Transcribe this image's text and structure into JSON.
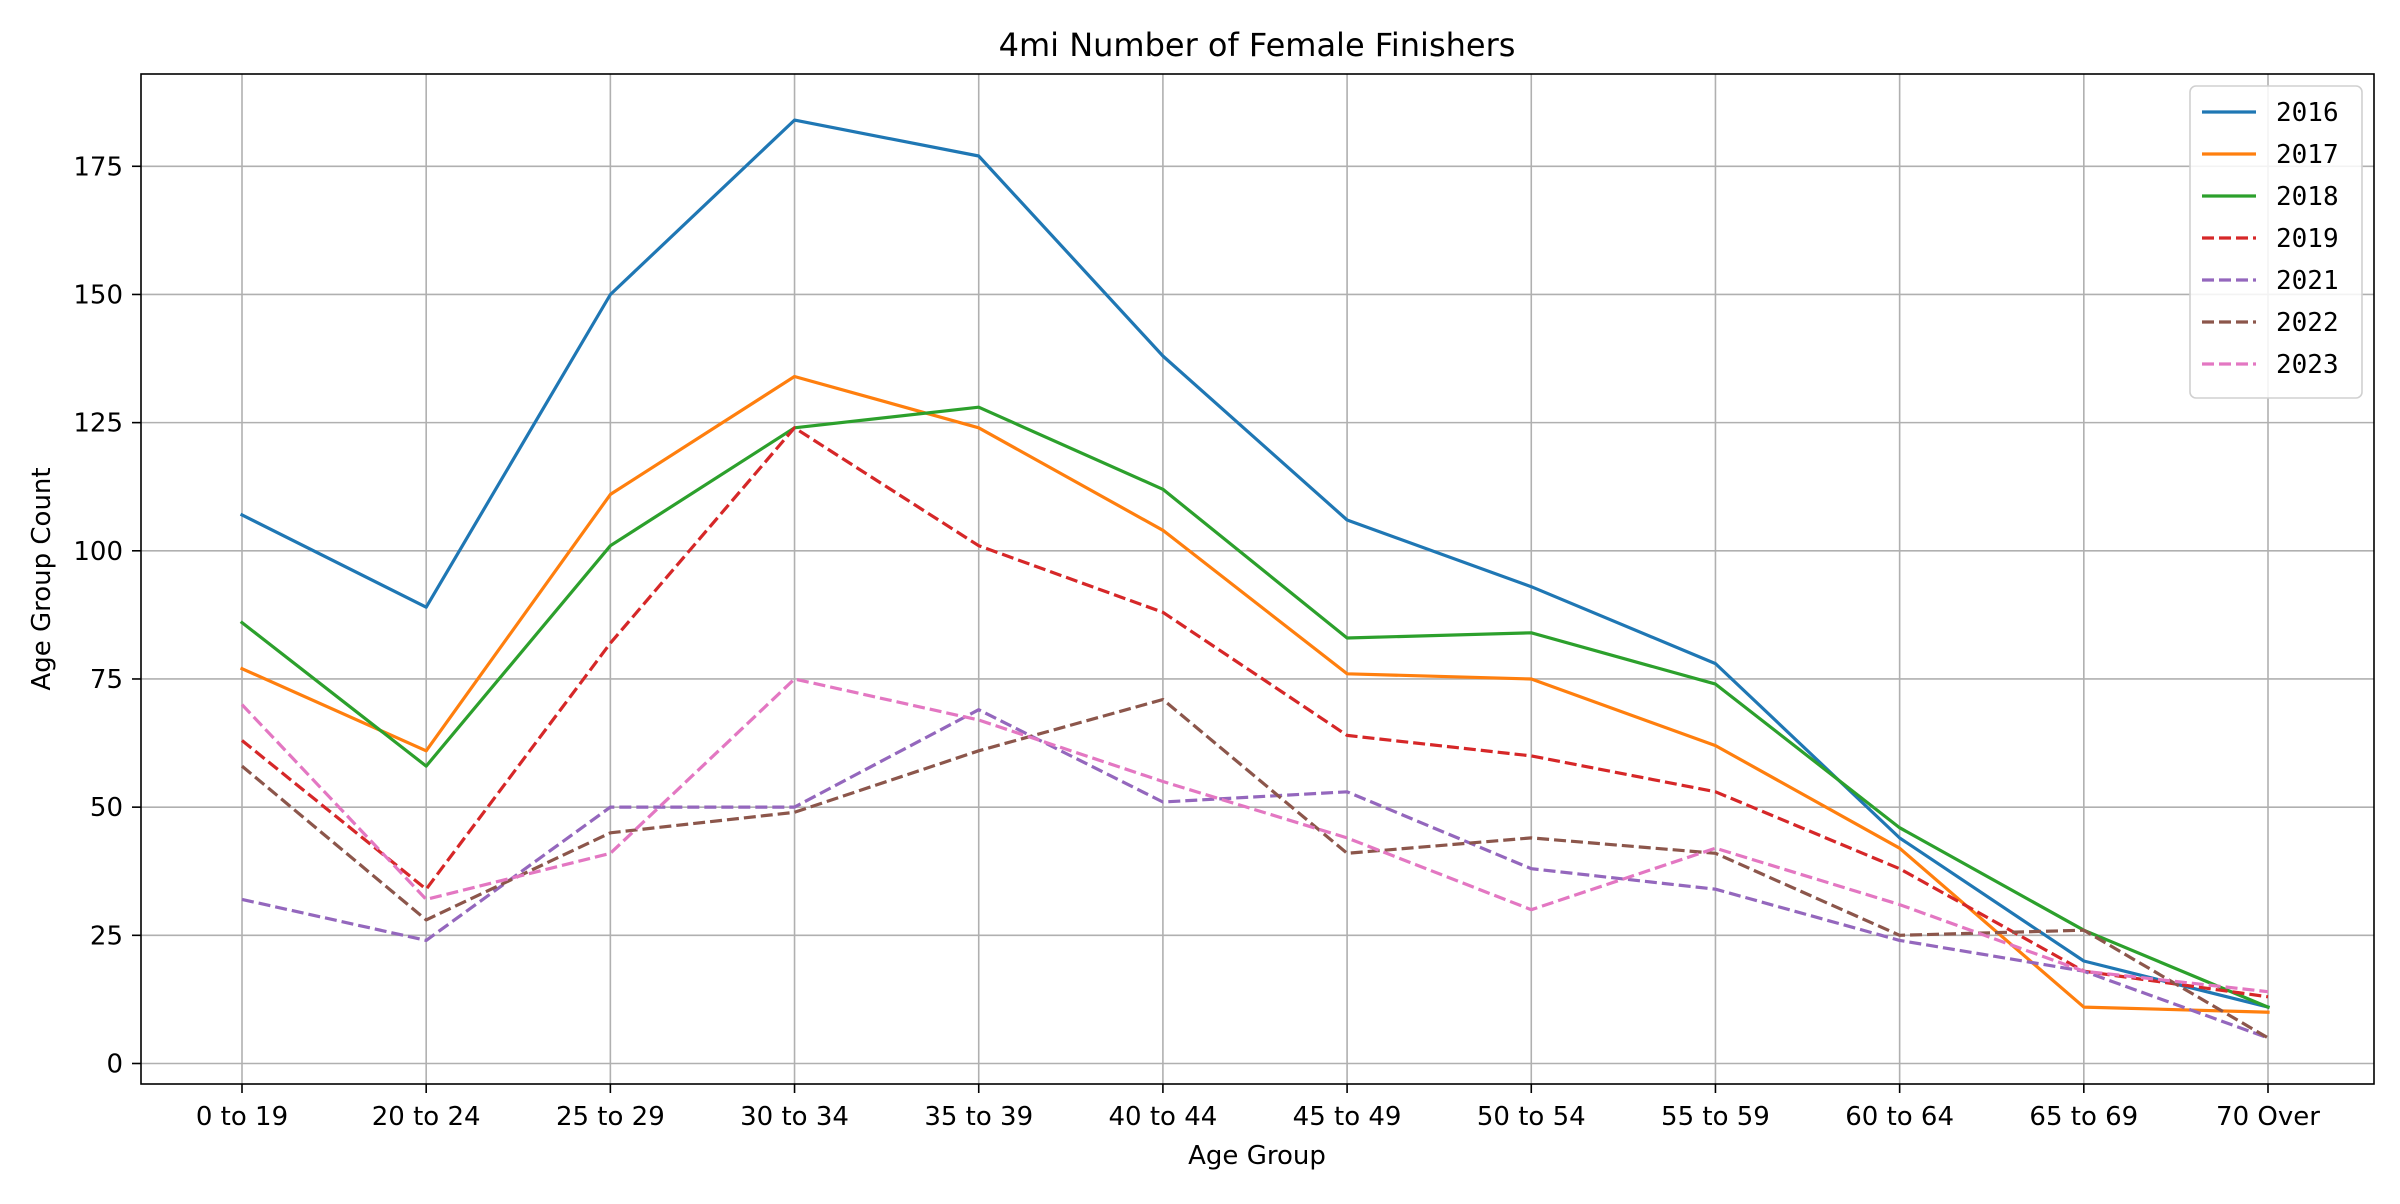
{
  "chart_data": {
    "type": "line",
    "title": "4mi Number of Female Finishers",
    "xlabel": "Age Group",
    "ylabel": "Age Group Count",
    "categories": [
      "0 to 19",
      "20 to 24",
      "25 to 29",
      "30 to 34",
      "35 to 39",
      "40 to 44",
      "45 to 49",
      "50 to 54",
      "55 to 59",
      "60 to 64",
      "65 to 69",
      "70 Over"
    ],
    "ylim": [
      -4,
      193
    ],
    "yticks": [
      "0",
      "25",
      "50",
      "75",
      "100",
      "125",
      "150",
      "175"
    ],
    "grid": true,
    "legend_position": "top-right",
    "series": [
      {
        "name": "2016",
        "color": "#1f77b4",
        "dash": "solid",
        "values": [
          107,
          89,
          150,
          184,
          177,
          138,
          106,
          93,
          78,
          44,
          20,
          11
        ]
      },
      {
        "name": "2017",
        "color": "#ff7f0e",
        "dash": "solid",
        "values": [
          77,
          61,
          111,
          134,
          124,
          104,
          76,
          75,
          62,
          42,
          11,
          10
        ]
      },
      {
        "name": "2018",
        "color": "#2ca02c",
        "dash": "solid",
        "values": [
          86,
          58,
          101,
          124,
          128,
          112,
          83,
          84,
          74,
          46,
          26,
          11
        ]
      },
      {
        "name": "2019",
        "color": "#d62728",
        "dash": "dashed",
        "values": [
          63,
          34,
          82,
          124,
          101,
          88,
          64,
          60,
          53,
          38,
          18,
          13
        ]
      },
      {
        "name": "2021",
        "color": "#9467bd",
        "dash": "dashed",
        "values": [
          32,
          24,
          50,
          50,
          69,
          51,
          53,
          38,
          34,
          24,
          18,
          5
        ]
      },
      {
        "name": "2022",
        "color": "#8c564b",
        "dash": "dashed",
        "values": [
          58,
          28,
          45,
          49,
          61,
          71,
          41,
          44,
          41,
          25,
          26,
          5
        ]
      },
      {
        "name": "2023",
        "color": "#e377c2",
        "dash": "dashed",
        "values": [
          70,
          32,
          41,
          75,
          67,
          55,
          44,
          30,
          42,
          31,
          18,
          14
        ]
      }
    ]
  }
}
